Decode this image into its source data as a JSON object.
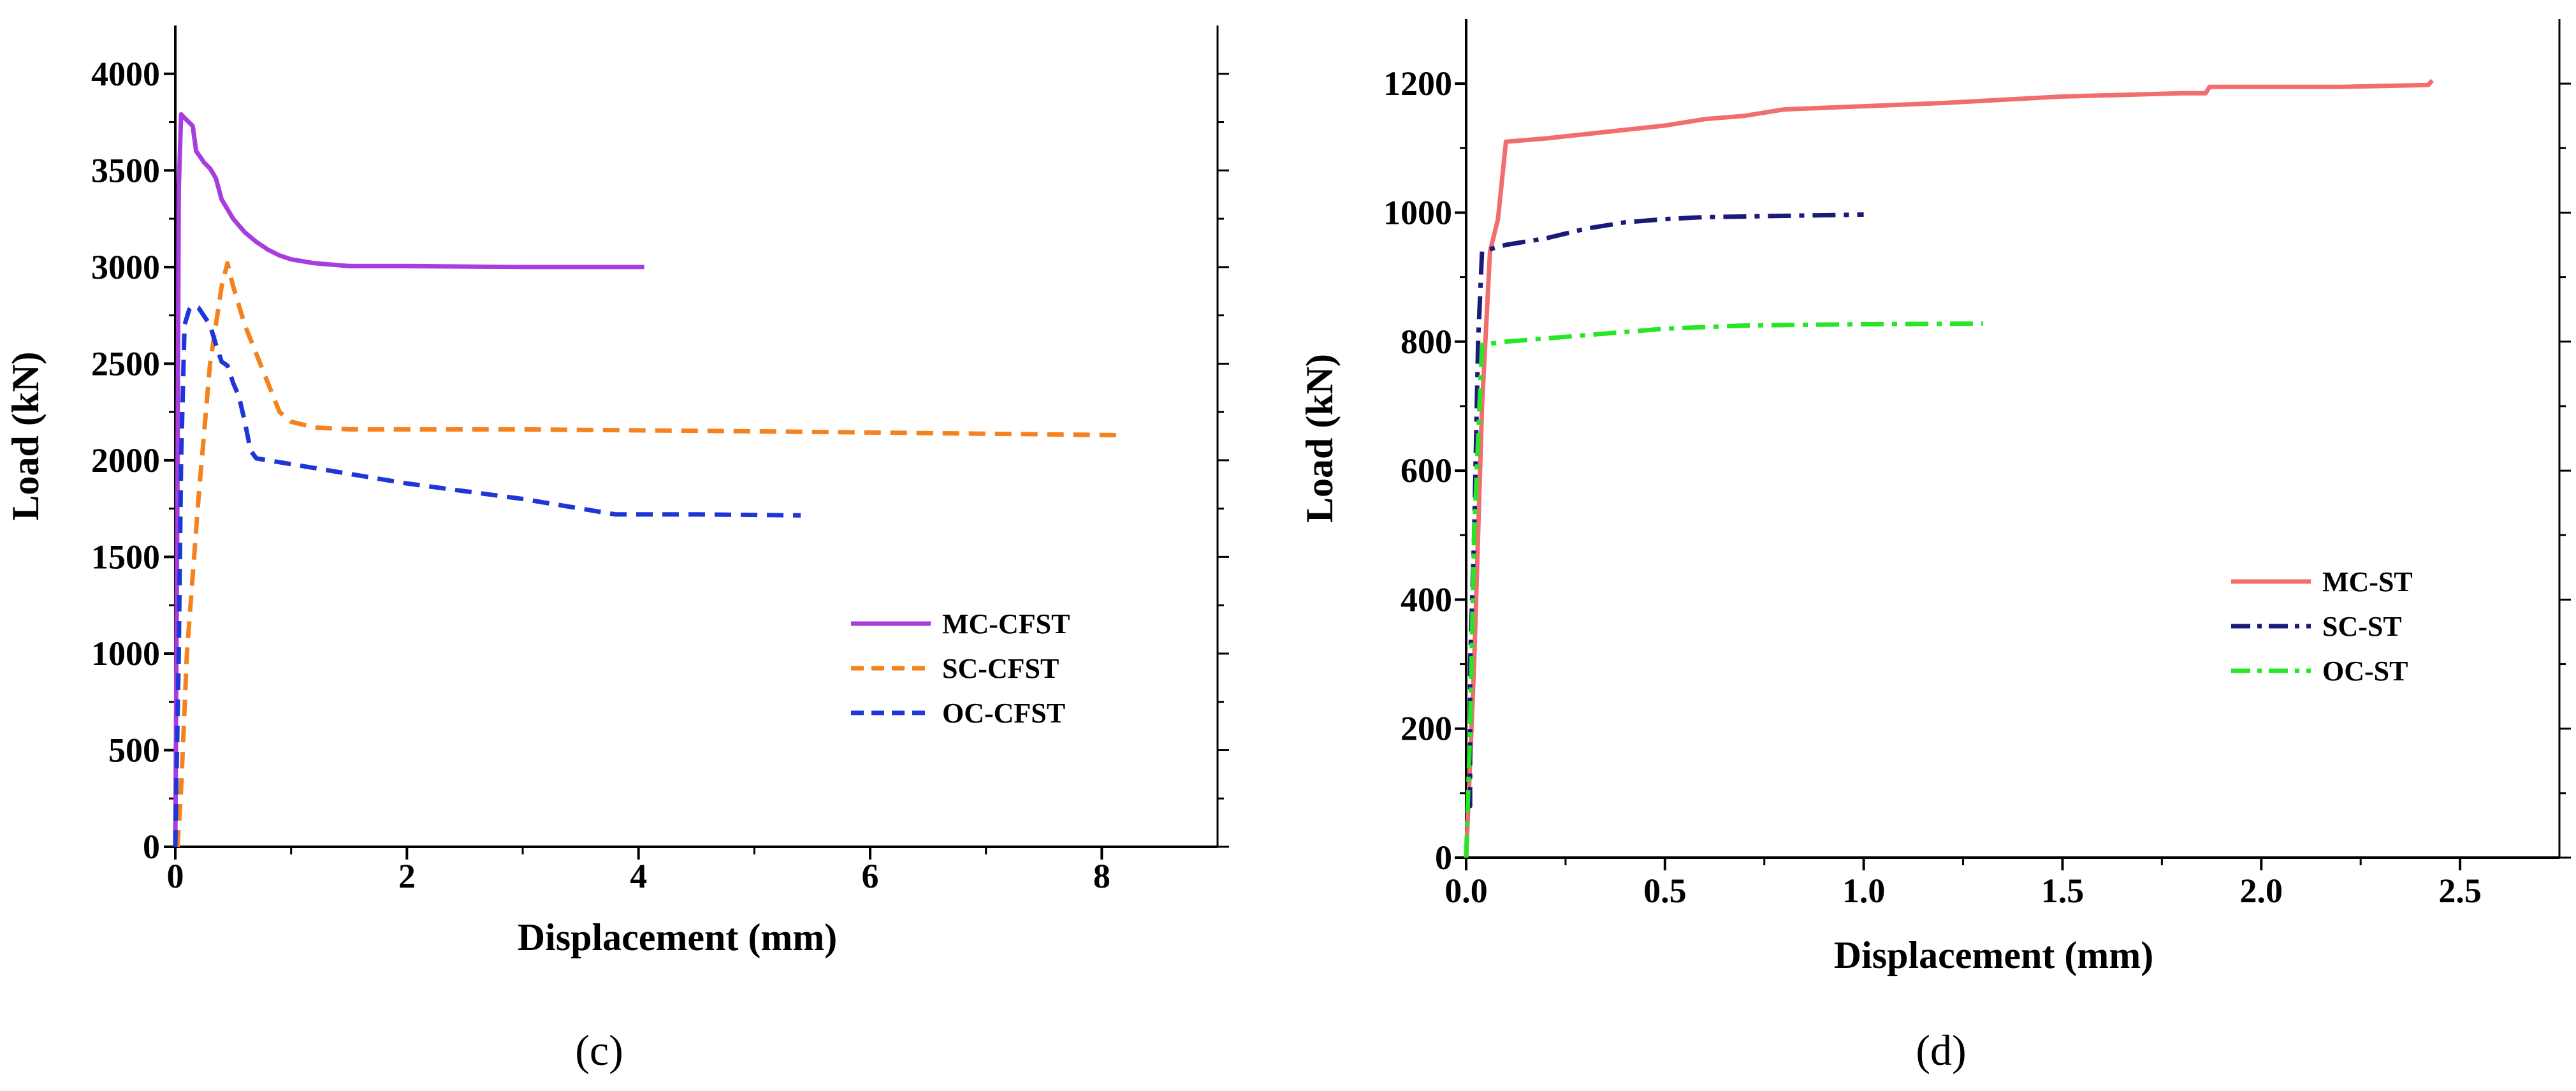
{
  "chart_data": [
    {
      "type": "line",
      "panel_label": "(c)",
      "xlabel": "Displacement (mm)",
      "ylabel": "Load (kN)",
      "xlim": [
        0,
        9
      ],
      "ylim": [
        0,
        4250
      ],
      "x_ticks": [
        0,
        2,
        4,
        6,
        8
      ],
      "x_tick_labels": [
        "0",
        "2",
        "4",
        "6",
        "8"
      ],
      "y_ticks": [
        0,
        500,
        1000,
        1500,
        2000,
        2500,
        3000,
        3500,
        4000
      ],
      "y_tick_labels": [
        "0",
        "500",
        "1000",
        "1500",
        "2000",
        "2500",
        "3000",
        "3500",
        "4000"
      ],
      "legend_position": "right-middle",
      "series": [
        {
          "name": "MC-CFST",
          "color": "#a63ddc",
          "dash": "solid",
          "points": [
            [
              0,
              0
            ],
            [
              0.02,
              2000
            ],
            [
              0.03,
              3400
            ],
            [
              0.05,
              3790
            ],
            [
              0.1,
              3760
            ],
            [
              0.15,
              3730
            ],
            [
              0.18,
              3600
            ],
            [
              0.25,
              3540
            ],
            [
              0.3,
              3510
            ],
            [
              0.35,
              3460
            ],
            [
              0.4,
              3350
            ],
            [
              0.5,
              3250
            ],
            [
              0.6,
              3180
            ],
            [
              0.7,
              3130
            ],
            [
              0.8,
              3090
            ],
            [
              0.9,
              3060
            ],
            [
              1.0,
              3040
            ],
            [
              1.2,
              3020
            ],
            [
              1.5,
              3005
            ],
            [
              2.0,
              3005
            ],
            [
              3.0,
              3000
            ],
            [
              4.05,
              3000
            ]
          ]
        },
        {
          "name": "SC-CFST",
          "color": "#f5821f",
          "dash": "dashed",
          "points": [
            [
              0.02,
              0
            ],
            [
              0.05,
              300
            ],
            [
              0.1,
              1000
            ],
            [
              0.2,
              1800
            ],
            [
              0.3,
              2500
            ],
            [
              0.4,
              2900
            ],
            [
              0.45,
              3020
            ],
            [
              0.5,
              2900
            ],
            [
              0.6,
              2700
            ],
            [
              0.7,
              2550
            ],
            [
              0.8,
              2400
            ],
            [
              0.9,
              2250
            ],
            [
              1.0,
              2200
            ],
            [
              1.2,
              2170
            ],
            [
              1.5,
              2160
            ],
            [
              3.0,
              2160
            ],
            [
              5.0,
              2150
            ],
            [
              8.2,
              2130
            ]
          ]
        },
        {
          "name": "OC-CFST",
          "color": "#1e36d8",
          "dash": "dashed",
          "points": [
            [
              0,
              0
            ],
            [
              0.03,
              1000
            ],
            [
              0.05,
              2000
            ],
            [
              0.08,
              2700
            ],
            [
              0.12,
              2780
            ],
            [
              0.15,
              2800
            ],
            [
              0.2,
              2790
            ],
            [
              0.3,
              2700
            ],
            [
              0.35,
              2600
            ],
            [
              0.4,
              2510
            ],
            [
              0.45,
              2490
            ],
            [
              0.5,
              2400
            ],
            [
              0.55,
              2330
            ],
            [
              0.6,
              2200
            ],
            [
              0.65,
              2050
            ],
            [
              0.7,
              2010
            ],
            [
              1.0,
              1980
            ],
            [
              1.5,
              1930
            ],
            [
              2.0,
              1880
            ],
            [
              3.0,
              1800
            ],
            [
              3.5,
              1750
            ],
            [
              3.8,
              1720
            ],
            [
              4.5,
              1720
            ],
            [
              5.4,
              1715
            ]
          ]
        }
      ]
    },
    {
      "type": "line",
      "panel_label": "(d)",
      "xlabel": "Displacement (mm)",
      "ylabel": "Load (kN)",
      "xlim": [
        0,
        2.75
      ],
      "ylim": [
        0,
        1300
      ],
      "x_ticks": [
        0,
        0.5,
        1.0,
        1.5,
        2.0,
        2.5
      ],
      "x_tick_labels": [
        "0.0",
        "0.5",
        "1.0",
        "1.5",
        "2.0",
        "2.5"
      ],
      "y_ticks": [
        0,
        200,
        400,
        600,
        800,
        1000,
        1200
      ],
      "y_tick_labels": [
        "0",
        "200",
        "400",
        "600",
        "800",
        "1000",
        "1200"
      ],
      "legend_position": "right-middle",
      "series": [
        {
          "name": "MC-ST",
          "color": "#f26d6d",
          "dash": "solid",
          "points": [
            [
              0,
              0
            ],
            [
              0.02,
              300
            ],
            [
              0.04,
              700
            ],
            [
              0.06,
              940
            ],
            [
              0.08,
              990
            ],
            [
              0.1,
              1110
            ],
            [
              0.2,
              1115
            ],
            [
              0.35,
              1125
            ],
            [
              0.5,
              1135
            ],
            [
              0.6,
              1145
            ],
            [
              0.7,
              1150
            ],
            [
              0.8,
              1160
            ],
            [
              1.0,
              1165
            ],
            [
              1.2,
              1170
            ],
            [
              1.5,
              1180
            ],
            [
              1.8,
              1185
            ],
            [
              1.86,
              1185
            ],
            [
              1.87,
              1195
            ],
            [
              2.2,
              1195
            ],
            [
              2.42,
              1198
            ],
            [
              2.43,
              1205
            ]
          ]
        },
        {
          "name": "SC-ST",
          "color": "#1a1a78",
          "dash": "dashdot",
          "points": [
            [
              0,
              80
            ],
            [
              0.01,
              80
            ],
            [
              0.01,
              300
            ],
            [
              0.02,
              500
            ],
            [
              0.03,
              800
            ],
            [
              0.04,
              940
            ],
            [
              0.1,
              950
            ],
            [
              0.2,
              960
            ],
            [
              0.3,
              975
            ],
            [
              0.4,
              985
            ],
            [
              0.5,
              990
            ],
            [
              0.6,
              993
            ],
            [
              0.8,
              995
            ],
            [
              1.0,
              997
            ]
          ]
        },
        {
          "name": "OC-ST",
          "color": "#27e527",
          "dash": "dashdot",
          "points": [
            [
              0,
              0
            ],
            [
              0.01,
              200
            ],
            [
              0.02,
              500
            ],
            [
              0.03,
              650
            ],
            [
              0.04,
              795
            ],
            [
              0.1,
              800
            ],
            [
              0.3,
              810
            ],
            [
              0.5,
              820
            ],
            [
              0.7,
              825
            ],
            [
              1.0,
              827
            ],
            [
              1.3,
              828
            ]
          ]
        }
      ]
    }
  ]
}
